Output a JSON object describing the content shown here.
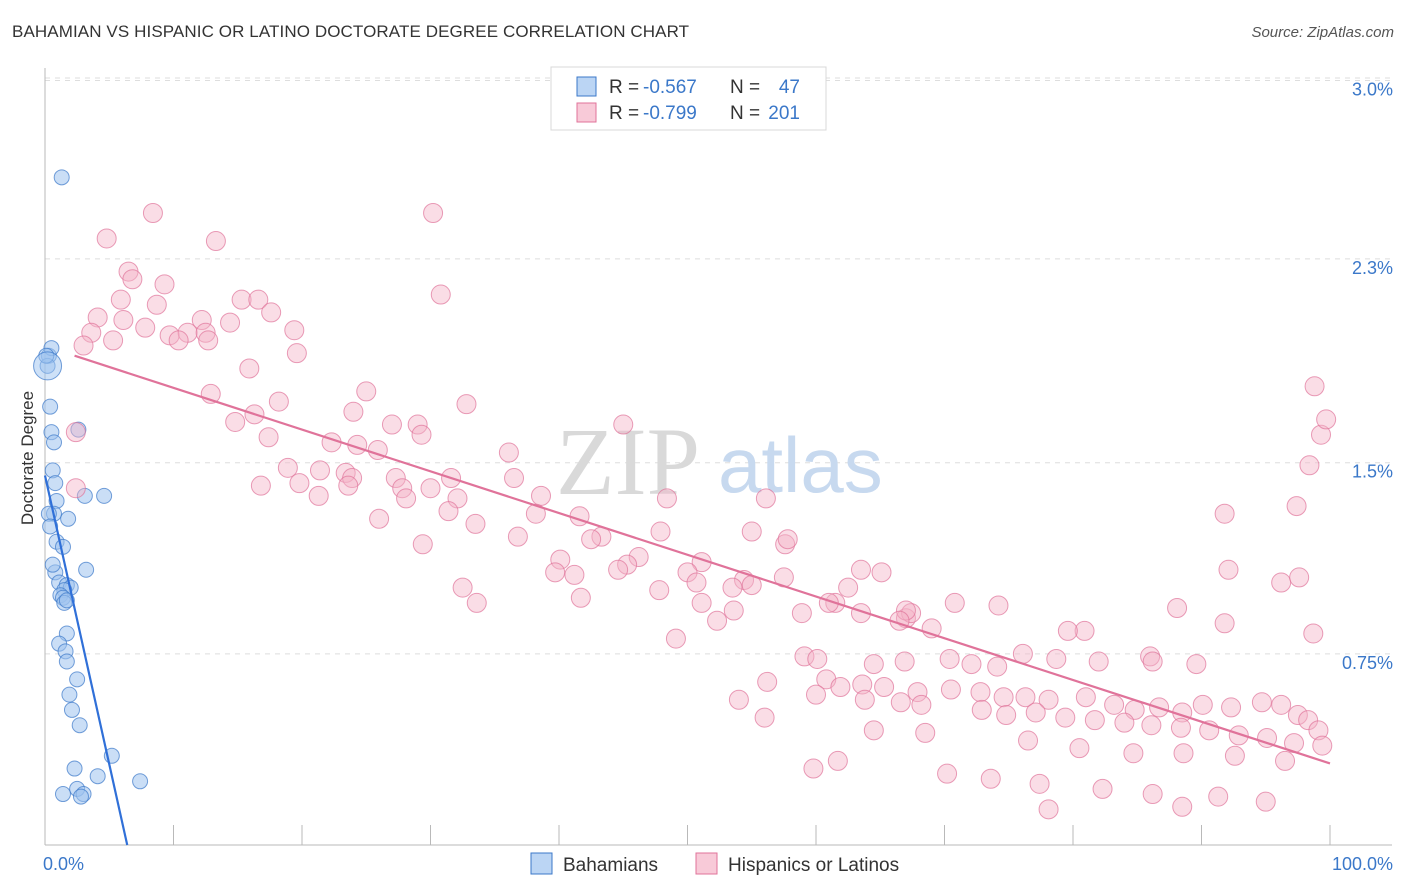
{
  "title": "BAHAMIAN VS HISPANIC OR LATINO DOCTORATE DEGREE CORRELATION CHART",
  "source": "Source: ZipAtlas.com",
  "watermark": {
    "part1": "ZIP",
    "part2": "atlas"
  },
  "legend_top": {
    "rows": [
      {
        "r_label": "R =",
        "r_value": "-0.567",
        "n_label": "N =",
        "n_value": "47",
        "color": "#9ec3ef"
      },
      {
        "r_label": "R =",
        "r_value": "-0.799",
        "n_label": "N =",
        "n_value": "201",
        "color": "#f5b3c8"
      }
    ]
  },
  "legend_bottom": {
    "items": [
      {
        "label": "Bahamians",
        "color": "#9ec3ef"
      },
      {
        "label": "Hispanics or Latinos",
        "color": "#f5b3c8"
      }
    ]
  },
  "chart_data": {
    "type": "scatter",
    "title": "BAHAMIAN VS HISPANIC OR LATINO DOCTORATE DEGREE CORRELATION CHART",
    "xlabel": "",
    "ylabel": "Doctorate Degree",
    "xlim": [
      0,
      100
    ],
    "ylim": [
      0,
      3.1
    ],
    "x_tick_labels": [
      "0.0%",
      "100.0%"
    ],
    "y_ticks": [
      {
        "value": 0.75,
        "label": "0.75%"
      },
      {
        "value": 1.5,
        "label": "1.5%"
      },
      {
        "value": 2.3,
        "label": "2.3%"
      },
      {
        "value": 3.0,
        "label": "3.0%"
      }
    ],
    "grid": true,
    "series": [
      {
        "name": "Bahamians",
        "color": "#9ec3ef",
        "stroke": "#3b78c9",
        "trend": {
          "x": [
            0,
            6.4
          ],
          "y": [
            1.45,
            0.0
          ],
          "color": "#3070d8"
        },
        "points": [
          [
            0.3,
            1.92
          ],
          [
            0.5,
            1.95
          ],
          [
            0.2,
            1.88
          ],
          [
            1.3,
            2.62
          ],
          [
            0.4,
            1.72
          ],
          [
            0.5,
            1.62
          ],
          [
            0.7,
            1.58
          ],
          [
            2.6,
            1.63
          ],
          [
            0.6,
            1.47
          ],
          [
            0.8,
            1.42
          ],
          [
            0.9,
            1.35
          ],
          [
            3.1,
            1.37
          ],
          [
            4.6,
            1.37
          ],
          [
            0.7,
            1.3
          ],
          [
            1.8,
            1.28
          ],
          [
            0.9,
            1.19
          ],
          [
            1.4,
            1.17
          ],
          [
            0.8,
            1.07
          ],
          [
            3.2,
            1.08
          ],
          [
            1.1,
            1.03
          ],
          [
            1.7,
            1.02
          ],
          [
            2.0,
            1.01
          ],
          [
            1.5,
            1.0
          ],
          [
            1.2,
            0.98
          ],
          [
            1.4,
            0.97
          ],
          [
            1.5,
            0.95
          ],
          [
            1.7,
            0.96
          ],
          [
            1.7,
            0.83
          ],
          [
            1.1,
            0.79
          ],
          [
            1.6,
            0.76
          ],
          [
            1.7,
            0.72
          ],
          [
            2.5,
            0.65
          ],
          [
            1.9,
            0.59
          ],
          [
            2.1,
            0.53
          ],
          [
            2.7,
            0.47
          ],
          [
            5.2,
            0.35
          ],
          [
            2.3,
            0.3
          ],
          [
            4.1,
            0.27
          ],
          [
            7.4,
            0.25
          ],
          [
            2.5,
            0.22
          ],
          [
            3.0,
            0.2
          ],
          [
            1.4,
            0.2
          ],
          [
            2.8,
            0.19
          ],
          [
            0.1,
            1.92
          ],
          [
            0.3,
            1.3
          ],
          [
            0.4,
            1.25
          ],
          [
            0.6,
            1.1
          ]
        ]
      },
      {
        "name": "Hispanics or Latinos",
        "color": "#f5b3c8",
        "stroke": "#e0739a",
        "trend": {
          "x": [
            2.3,
            100
          ],
          "y": [
            1.92,
            0.32
          ],
          "color": "#e0739a"
        },
        "points": [
          [
            8.4,
            2.48
          ],
          [
            30.2,
            2.48
          ],
          [
            4.8,
            2.38
          ],
          [
            13.3,
            2.37
          ],
          [
            6.5,
            2.25
          ],
          [
            6.8,
            2.22
          ],
          [
            9.3,
            2.2
          ],
          [
            30.8,
            2.16
          ],
          [
            5.9,
            2.14
          ],
          [
            8.7,
            2.12
          ],
          [
            15.3,
            2.14
          ],
          [
            16.6,
            2.14
          ],
          [
            17.6,
            2.09
          ],
          [
            4.1,
            2.07
          ],
          [
            6.1,
            2.06
          ],
          [
            12.2,
            2.06
          ],
          [
            14.4,
            2.05
          ],
          [
            7.8,
            2.03
          ],
          [
            3.6,
            2.01
          ],
          [
            9.7,
            2.0
          ],
          [
            11.1,
            2.01
          ],
          [
            12.5,
            2.01
          ],
          [
            19.4,
            2.02
          ],
          [
            10.4,
            1.98
          ],
          [
            12.7,
            1.98
          ],
          [
            5.3,
            1.98
          ],
          [
            3.0,
            1.96
          ],
          [
            19.6,
            1.93
          ],
          [
            15.9,
            1.87
          ],
          [
            25.0,
            1.78
          ],
          [
            12.9,
            1.77
          ],
          [
            32.8,
            1.73
          ],
          [
            18.2,
            1.74
          ],
          [
            24.0,
            1.7
          ],
          [
            16.3,
            1.69
          ],
          [
            14.8,
            1.66
          ],
          [
            27.0,
            1.65
          ],
          [
            29.0,
            1.65
          ],
          [
            45.0,
            1.65
          ],
          [
            29.3,
            1.61
          ],
          [
            17.4,
            1.6
          ],
          [
            2.4,
            1.62
          ],
          [
            22.3,
            1.58
          ],
          [
            24.3,
            1.57
          ],
          [
            25.9,
            1.55
          ],
          [
            36.1,
            1.54
          ],
          [
            18.9,
            1.48
          ],
          [
            21.4,
            1.47
          ],
          [
            23.4,
            1.46
          ],
          [
            23.9,
            1.44
          ],
          [
            16.8,
            1.41
          ],
          [
            36.5,
            1.44
          ],
          [
            27.3,
            1.44
          ],
          [
            19.8,
            1.42
          ],
          [
            31.6,
            1.44
          ],
          [
            23.6,
            1.41
          ],
          [
            27.8,
            1.4
          ],
          [
            30.0,
            1.4
          ],
          [
            2.4,
            1.4
          ],
          [
            21.3,
            1.37
          ],
          [
            28.1,
            1.36
          ],
          [
            32.1,
            1.36
          ],
          [
            38.6,
            1.37
          ],
          [
            48.4,
            1.36
          ],
          [
            56.1,
            1.36
          ],
          [
            31.4,
            1.31
          ],
          [
            41.6,
            1.29
          ],
          [
            38.2,
            1.3
          ],
          [
            26.0,
            1.28
          ],
          [
            33.5,
            1.26
          ],
          [
            47.9,
            1.23
          ],
          [
            55.0,
            1.23
          ],
          [
            43.3,
            1.21
          ],
          [
            42.5,
            1.2
          ],
          [
            36.8,
            1.21
          ],
          [
            29.4,
            1.18
          ],
          [
            57.6,
            1.18
          ],
          [
            57.8,
            1.2
          ],
          [
            40.1,
            1.12
          ],
          [
            46.2,
            1.13
          ],
          [
            51.1,
            1.11
          ],
          [
            45.3,
            1.1
          ],
          [
            50.0,
            1.07
          ],
          [
            57.5,
            1.05
          ],
          [
            54.4,
            1.04
          ],
          [
            41.2,
            1.06
          ],
          [
            39.7,
            1.07
          ],
          [
            44.6,
            1.08
          ],
          [
            65.1,
            1.07
          ],
          [
            50.7,
            1.03
          ],
          [
            53.5,
            1.01
          ],
          [
            47.8,
            1.0
          ],
          [
            55.0,
            1.02
          ],
          [
            63.5,
            1.08
          ],
          [
            32.5,
            1.01
          ],
          [
            62.5,
            1.01
          ],
          [
            41.7,
            0.97
          ],
          [
            33.6,
            0.95
          ],
          [
            51.1,
            0.95
          ],
          [
            61.5,
            0.95
          ],
          [
            70.8,
            0.95
          ],
          [
            53.6,
            0.92
          ],
          [
            52.3,
            0.88
          ],
          [
            58.9,
            0.91
          ],
          [
            67.0,
            0.89
          ],
          [
            61.0,
            0.95
          ],
          [
            67.4,
            0.91
          ],
          [
            67.0,
            0.92
          ],
          [
            63.5,
            0.91
          ],
          [
            66.5,
            0.88
          ],
          [
            69.0,
            0.85
          ],
          [
            74.2,
            0.94
          ],
          [
            80.9,
            0.84
          ],
          [
            79.6,
            0.84
          ],
          [
            88.1,
            0.93
          ],
          [
            91.8,
            0.87
          ],
          [
            96.2,
            1.03
          ],
          [
            97.6,
            1.05
          ],
          [
            98.7,
            0.83
          ],
          [
            91.8,
            1.3
          ],
          [
            98.8,
            1.8
          ],
          [
            99.3,
            1.61
          ],
          [
            99.7,
            1.67
          ],
          [
            98.4,
            1.49
          ],
          [
            97.4,
            1.33
          ],
          [
            92.1,
            1.08
          ],
          [
            49.1,
            0.81
          ],
          [
            59.1,
            0.74
          ],
          [
            60.1,
            0.73
          ],
          [
            64.5,
            0.71
          ],
          [
            66.9,
            0.72
          ],
          [
            70.4,
            0.73
          ],
          [
            72.1,
            0.71
          ],
          [
            74.1,
            0.7
          ],
          [
            76.1,
            0.75
          ],
          [
            78.7,
            0.73
          ],
          [
            82.0,
            0.72
          ],
          [
            86.0,
            0.74
          ],
          [
            86.2,
            0.72
          ],
          [
            89.6,
            0.71
          ],
          [
            60.8,
            0.65
          ],
          [
            56.2,
            0.64
          ],
          [
            61.9,
            0.62
          ],
          [
            63.6,
            0.63
          ],
          [
            65.3,
            0.62
          ],
          [
            67.9,
            0.6
          ],
          [
            70.5,
            0.61
          ],
          [
            72.8,
            0.6
          ],
          [
            74.6,
            0.58
          ],
          [
            76.3,
            0.58
          ],
          [
            78.1,
            0.57
          ],
          [
            81.0,
            0.58
          ],
          [
            83.2,
            0.55
          ],
          [
            84.8,
            0.53
          ],
          [
            86.7,
            0.54
          ],
          [
            88.5,
            0.52
          ],
          [
            90.1,
            0.55
          ],
          [
            92.3,
            0.54
          ],
          [
            94.7,
            0.56
          ],
          [
            96.2,
            0.55
          ],
          [
            97.5,
            0.51
          ],
          [
            98.3,
            0.49
          ],
          [
            99.1,
            0.45
          ],
          [
            54.0,
            0.57
          ],
          [
            60.0,
            0.59
          ],
          [
            63.8,
            0.57
          ],
          [
            66.6,
            0.56
          ],
          [
            68.2,
            0.55
          ],
          [
            72.9,
            0.53
          ],
          [
            74.8,
            0.51
          ],
          [
            77.1,
            0.52
          ],
          [
            79.4,
            0.5
          ],
          [
            81.7,
            0.49
          ],
          [
            84.0,
            0.48
          ],
          [
            86.1,
            0.47
          ],
          [
            88.4,
            0.46
          ],
          [
            90.6,
            0.45
          ],
          [
            92.9,
            0.43
          ],
          [
            95.1,
            0.42
          ],
          [
            97.2,
            0.4
          ],
          [
            99.4,
            0.39
          ],
          [
            56.0,
            0.5
          ],
          [
            64.5,
            0.45
          ],
          [
            68.5,
            0.44
          ],
          [
            76.5,
            0.41
          ],
          [
            80.5,
            0.38
          ],
          [
            84.7,
            0.36
          ],
          [
            88.6,
            0.36
          ],
          [
            92.6,
            0.35
          ],
          [
            96.5,
            0.33
          ],
          [
            59.8,
            0.3
          ],
          [
            70.2,
            0.28
          ],
          [
            73.6,
            0.26
          ],
          [
            77.4,
            0.24
          ],
          [
            82.3,
            0.22
          ],
          [
            86.2,
            0.2
          ],
          [
            91.3,
            0.19
          ],
          [
            95.0,
            0.17
          ],
          [
            78.1,
            0.14
          ],
          [
            88.5,
            0.15
          ],
          [
            61.7,
            0.33
          ]
        ]
      }
    ]
  }
}
